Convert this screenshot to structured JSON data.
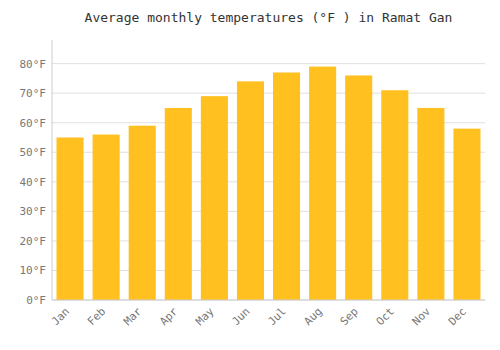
{
  "chart_data": {
    "type": "bar",
    "title": "Average monthly temperatures (°F ) in Ramat Gan",
    "categories": [
      "Jan",
      "Feb",
      "Mar",
      "Apr",
      "May",
      "Jun",
      "Jul",
      "Aug",
      "Sep",
      "Oct",
      "Nov",
      "Dec"
    ],
    "values": [
      55,
      56,
      59,
      65,
      69,
      74,
      77,
      79,
      76,
      71,
      65,
      58
    ],
    "color": "#FFC020",
    "ylim": [
      0,
      88
    ],
    "yticks": [
      {
        "value": 0,
        "label": "0°F"
      },
      {
        "value": 10,
        "label": "10°F"
      },
      {
        "value": 20,
        "label": "20°F"
      },
      {
        "value": 30,
        "label": "30°F"
      },
      {
        "value": 40,
        "label": "40°F"
      },
      {
        "value": 50,
        "label": "50°F"
      },
      {
        "value": 60,
        "label": "60°F"
      },
      {
        "value": 70,
        "label": "70°F"
      },
      {
        "value": 80,
        "label": "80°F"
      }
    ],
    "grid": true
  }
}
